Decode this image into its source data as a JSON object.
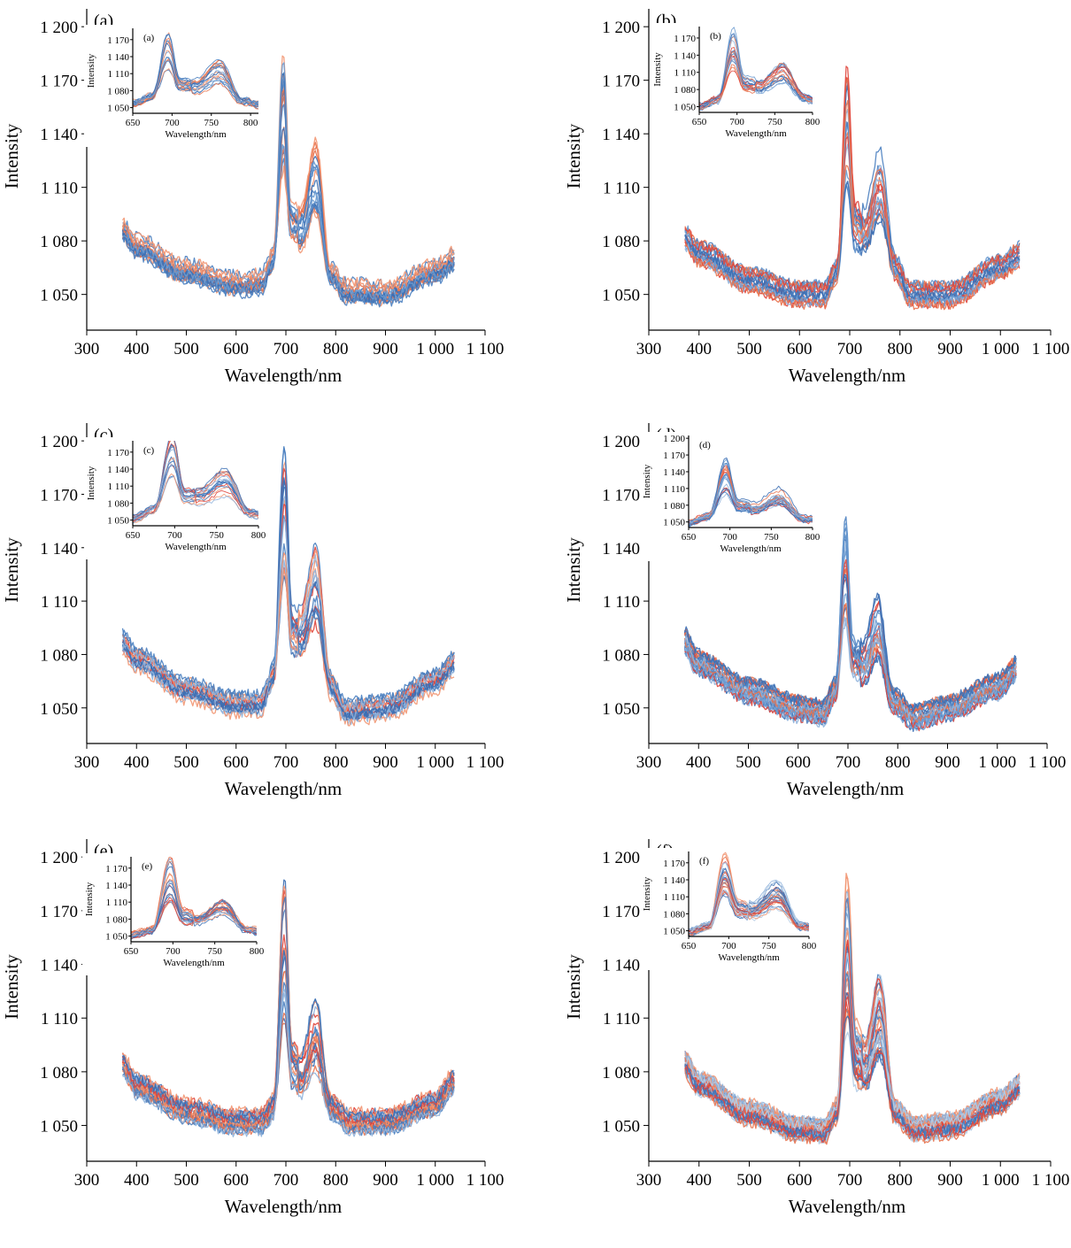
{
  "figure": {
    "panels": [
      {
        "id": "a",
        "label": "(a)",
        "inset_label": "(a)"
      },
      {
        "id": "b",
        "label": "(b)",
        "inset_label": "(b)"
      },
      {
        "id": "c",
        "label": "(c)",
        "inset_label": "(c)"
      },
      {
        "id": "d",
        "label": "(d)",
        "inset_label": "(d)"
      },
      {
        "id": "e",
        "label": "(e)",
        "inset_label": "(e)"
      },
      {
        "id": "f",
        "label": "(f)",
        "inset_label": "(f)"
      }
    ]
  },
  "chart_data": [
    {
      "type": "line",
      "panel": "(a)",
      "xlabel": "Wavelength/nm",
      "ylabel": "Intensity",
      "xlim": [
        300,
        1100
      ],
      "ylim": [
        1030,
        1210
      ],
      "xticks": [
        300,
        400,
        500,
        600,
        700,
        800,
        900,
        1000,
        1100
      ],
      "xtick_labels": [
        "300",
        "400",
        "500",
        "600",
        "700",
        "800",
        "900",
        "1 000",
        "1 100"
      ],
      "yticks": [
        1050,
        1080,
        1110,
        1140,
        1170,
        1200
      ],
      "ytick_labels": [
        "1 050",
        "1 080",
        "1 110",
        "1 140",
        "1 170",
        "1 200"
      ],
      "num_spectra": 20,
      "colors": [
        "#e8734f",
        "#f29672",
        "#4a7fc0",
        "#3c6fb4",
        "#6c9bd0"
      ],
      "profile": {
        "x": [
          370,
          400,
          500,
          600,
          650,
          675,
          695,
          710,
          730,
          760,
          790,
          820,
          900,
          1000,
          1040
        ],
        "y": [
          1087,
          1077,
          1063,
          1056,
          1057,
          1070,
          1150,
          1090,
          1088,
          1115,
          1062,
          1052,
          1051,
          1063,
          1070
        ]
      },
      "inset": {
        "label": "(a)",
        "xlabel": "Wavelength/nm",
        "ylabel": "Intensity",
        "xlim": [
          650,
          810
        ],
        "ylim": [
          1040,
          1190
        ],
        "xticks": [
          650,
          700,
          750,
          800
        ],
        "xtick_labels": [
          "650",
          "700",
          "750",
          "800"
        ],
        "yticks": [
          1050,
          1080,
          1110,
          1140,
          1170
        ],
        "ytick_labels": [
          "1 050",
          "1 080",
          "1 110",
          "1 140",
          "1 170"
        ]
      }
    },
    {
      "type": "line",
      "panel": "(b)",
      "xlabel": "Wavelength/nm",
      "ylabel": "Intensity",
      "xlim": [
        300,
        1100
      ],
      "ylim": [
        1030,
        1210
      ],
      "xticks": [
        300,
        400,
        500,
        600,
        700,
        800,
        900,
        1000,
        1100
      ],
      "xtick_labels": [
        "300",
        "400",
        "500",
        "600",
        "700",
        "800",
        "900",
        "1 000",
        "1 100"
      ],
      "yticks": [
        1050,
        1080,
        1110,
        1140,
        1170,
        1200
      ],
      "ytick_labels": [
        "1 050",
        "1 080",
        "1 110",
        "1 140",
        "1 170",
        "1 200"
      ],
      "num_spectra": 20,
      "colors": [
        "#e0463c",
        "#e8734f",
        "#4a7fc0",
        "#8fb3dc",
        "#6c9bd0",
        "#3c6fb4"
      ],
      "profile": {
        "x": [
          370,
          400,
          500,
          600,
          650,
          675,
          695,
          710,
          730,
          760,
          790,
          820,
          900,
          1000,
          1040
        ],
        "y": [
          1082,
          1073,
          1058,
          1050,
          1050,
          1063,
          1150,
          1090,
          1085,
          1110,
          1065,
          1050,
          1050,
          1065,
          1072
        ]
      },
      "inset": {
        "label": "(b)",
        "xlabel": "Wavelength/nm",
        "ylabel": "Intensity",
        "xlim": [
          650,
          800
        ],
        "ylim": [
          1040,
          1190
        ],
        "xticks": [
          650,
          700,
          750,
          800
        ],
        "xtick_labels": [
          "650",
          "700",
          "750",
          "800"
        ],
        "yticks": [
          1050,
          1080,
          1110,
          1140,
          1170
        ],
        "ytick_labels": [
          "1 050",
          "1 080",
          "1 110",
          "1 140",
          "1 170"
        ]
      }
    },
    {
      "type": "line",
      "panel": "(c)",
      "xlabel": "Wavelength/nm",
      "ylabel": "Intensity",
      "xlim": [
        300,
        1100
      ],
      "ylim": [
        1030,
        1210
      ],
      "xticks": [
        300,
        400,
        500,
        600,
        700,
        800,
        900,
        1000,
        1100
      ],
      "xtick_labels": [
        "300",
        "400",
        "500",
        "600",
        "700",
        "800",
        "900",
        "1 000",
        "1 100"
      ],
      "yticks": [
        1050,
        1080,
        1110,
        1140,
        1170,
        1200
      ],
      "ytick_labels": [
        "1 050",
        "1 080",
        "1 110",
        "1 140",
        "1 170",
        "1 200"
      ],
      "num_spectra": 20,
      "colors": [
        "#e0463c",
        "#f29672",
        "#4a7fc0",
        "#3c6fb4",
        "#8fb3dc"
      ],
      "profile": {
        "x": [
          370,
          400,
          500,
          600,
          650,
          675,
          697,
          712,
          730,
          760,
          790,
          820,
          900,
          1000,
          1040
        ],
        "y": [
          1087,
          1077,
          1060,
          1052,
          1052,
          1068,
          1160,
          1092,
          1090,
          1115,
          1062,
          1048,
          1050,
          1065,
          1075
        ]
      },
      "inset": {
        "label": "(c)",
        "xlabel": "Wavelength/nm",
        "ylabel": "Intensity",
        "xlim": [
          650,
          800
        ],
        "ylim": [
          1040,
          1190
        ],
        "xticks": [
          650,
          700,
          750,
          800
        ],
        "xtick_labels": [
          "650",
          "700",
          "750",
          "800"
        ],
        "yticks": [
          1050,
          1080,
          1110,
          1140,
          1170
        ],
        "ytick_labels": [
          "1 050",
          "1 080",
          "1 110",
          "1 140",
          "1 170"
        ]
      }
    },
    {
      "type": "line",
      "panel": "(d)",
      "xlabel": "Wavelength/nm",
      "ylabel": "Intensity",
      "xlim": [
        300,
        1100
      ],
      "ylim": [
        1030,
        1210
      ],
      "xticks": [
        300,
        400,
        500,
        600,
        700,
        800,
        900,
        1000,
        1100
      ],
      "xtick_labels": [
        "300",
        "400",
        "500",
        "600",
        "700",
        "800",
        "900",
        "1 000",
        "1 100"
      ],
      "yticks": [
        1050,
        1080,
        1110,
        1140,
        1170,
        1200
      ],
      "ytick_labels": [
        "1 050",
        "1 080",
        "1 110",
        "1 140",
        "1 170",
        "1 200"
      ],
      "num_spectra": 24,
      "colors": [
        "#e0463c",
        "#e8734f",
        "#4a7fc0",
        "#3c6fb4",
        "#8fb3dc",
        "#6c9bd0"
      ],
      "profile": {
        "x": [
          370,
          400,
          500,
          600,
          650,
          675,
          695,
          710,
          730,
          760,
          790,
          830,
          900,
          1000,
          1040
        ],
        "y": [
          1088,
          1075,
          1060,
          1050,
          1048,
          1060,
          1130,
          1078,
          1075,
          1095,
          1055,
          1045,
          1050,
          1062,
          1072
        ]
      },
      "inset": {
        "label": "(d)",
        "xlabel": "Wavelength/nm",
        "ylabel": "Intensity",
        "xlim": [
          650,
          800
        ],
        "ylim": [
          1040,
          1205
        ],
        "xticks": [
          650,
          700,
          750,
          800
        ],
        "xtick_labels": [
          "650",
          "700",
          "750",
          "800"
        ],
        "yticks": [
          1050,
          1080,
          1110,
          1140,
          1170,
          1200
        ],
        "ytick_labels": [
          "1 050",
          "1 080",
          "1 110",
          "1 140",
          "1 170",
          "1 200"
        ]
      }
    },
    {
      "type": "line",
      "panel": "(e)",
      "xlabel": "Wavelength/nm",
      "ylabel": "Intensity",
      "xlim": [
        300,
        1100
      ],
      "ylim": [
        1030,
        1210
      ],
      "xticks": [
        300,
        400,
        500,
        600,
        700,
        800,
        900,
        1000,
        1100
      ],
      "xtick_labels": [
        "300",
        "400",
        "500",
        "600",
        "700",
        "800",
        "900",
        "1 000",
        "1 100"
      ],
      "yticks": [
        1050,
        1080,
        1110,
        1140,
        1170,
        1200
      ],
      "ytick_labels": [
        "1 050",
        "1 080",
        "1 110",
        "1 140",
        "1 170",
        "1 200"
      ],
      "num_spectra": 24,
      "colors": [
        "#e0463c",
        "#e8734f",
        "#f29672",
        "#3c6fb4",
        "#4a7fc0",
        "#8fb3dc"
      ],
      "profile": {
        "x": [
          370,
          400,
          500,
          600,
          650,
          675,
          697,
          712,
          730,
          760,
          790,
          830,
          900,
          1000,
          1040
        ],
        "y": [
          1085,
          1072,
          1058,
          1052,
          1052,
          1060,
          1150,
          1085,
          1080,
          1103,
          1060,
          1052,
          1052,
          1062,
          1075
        ]
      },
      "inset": {
        "label": "(e)",
        "xlabel": "Wavelength/nm",
        "ylabel": "Intensity",
        "xlim": [
          650,
          800
        ],
        "ylim": [
          1040,
          1190
        ],
        "xticks": [
          650,
          700,
          750,
          800
        ],
        "xtick_labels": [
          "650",
          "700",
          "750",
          "800"
        ],
        "yticks": [
          1050,
          1080,
          1110,
          1140,
          1170
        ],
        "ytick_labels": [
          "1 050",
          "1 080",
          "1 110",
          "1 140",
          "1 170"
        ]
      }
    },
    {
      "type": "line",
      "panel": "(f)",
      "xlabel": "Wavelength/nm",
      "ylabel": "Intensity",
      "xlim": [
        300,
        1100
      ],
      "ylim": [
        1030,
        1210
      ],
      "xticks": [
        300,
        400,
        500,
        600,
        700,
        800,
        900,
        1000,
        1100
      ],
      "xtick_labels": [
        "300",
        "400",
        "500",
        "600",
        "700",
        "800",
        "900",
        "1 000",
        "1 100"
      ],
      "yticks": [
        1050,
        1080,
        1110,
        1140,
        1170,
        1200
      ],
      "ytick_labels": [
        "1 050",
        "1 080",
        "1 110",
        "1 140",
        "1 170",
        "1 200"
      ],
      "num_spectra": 36,
      "colors": [
        "#e0463c",
        "#e8734f",
        "#f29672",
        "#3c6fb4",
        "#4a7fc0",
        "#8fb3dc",
        "#b5cde6"
      ],
      "profile": {
        "x": [
          370,
          400,
          500,
          600,
          650,
          675,
          695,
          712,
          730,
          760,
          790,
          830,
          900,
          1000,
          1040
        ],
        "y": [
          1085,
          1073,
          1057,
          1048,
          1047,
          1058,
          1150,
          1090,
          1085,
          1113,
          1058,
          1048,
          1050,
          1063,
          1072
        ]
      },
      "inset": {
        "label": "(f)",
        "xlabel": "Wavelength/nm",
        "ylabel": "Intensity",
        "xlim": [
          650,
          800
        ],
        "ylim": [
          1040,
          1190
        ],
        "xticks": [
          650,
          700,
          750,
          800
        ],
        "xtick_labels": [
          "650",
          "700",
          "750",
          "800"
        ],
        "yticks": [
          1050,
          1080,
          1110,
          1140,
          1170
        ],
        "ytick_labels": [
          "1 050",
          "1 080",
          "1 110",
          "1 140",
          "1 170"
        ]
      }
    }
  ]
}
